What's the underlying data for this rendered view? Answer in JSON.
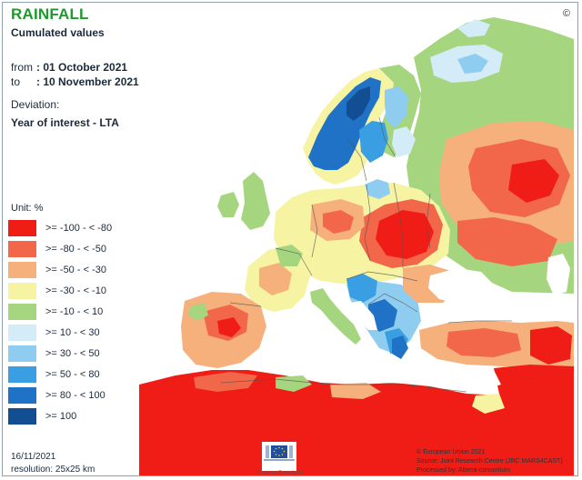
{
  "header": {
    "title": "RAINFALL",
    "subtitle": "Cumulated values",
    "from_key": "from",
    "from_value": ": 01 October 2021",
    "to_key": "to",
    "to_value": ": 10 November 2021",
    "deviation_label": "Deviation:",
    "deviation_value": "Year of interest - LTA"
  },
  "legend": {
    "unit": "Unit:  %",
    "items": [
      {
        "label": ">= -100 - < -80",
        "color": "#f01c16"
      },
      {
        "label": ">= -80 - < -50",
        "color": "#f2664a"
      },
      {
        "label": ">= -50 - < -30",
        "color": "#f6b07b"
      },
      {
        "label": ">= -30 - < -10",
        "color": "#f6f3a2"
      },
      {
        "label": ">= -10 - < 10",
        "color": "#a6d57f"
      },
      {
        "label": ">= 10 - < 30",
        "color": "#d4ecf8"
      },
      {
        "label": ">= 30 - < 50",
        "color": "#8fcdf0"
      },
      {
        "label": ">= 50 - < 80",
        "color": "#3a9fe2"
      },
      {
        "label": ">= 80 - < 100",
        "color": "#1f72c6"
      },
      {
        "label": ">= 100",
        "color": "#134e92"
      }
    ]
  },
  "footer": {
    "date": "16/11/2021",
    "resolution": "resolution:  25x25 km",
    "logo_text": "European Commission",
    "credits": [
      "© European Union 2021",
      "Source: Joint Research Centre (JRC MARS4CAST)",
      "Processed by: Alterra-consortium"
    ]
  },
  "colors": {
    "sea": "#ffffff",
    "outside_land": "#e4e4e4",
    "border": "#555555",
    "title": "#1a9b2c"
  }
}
